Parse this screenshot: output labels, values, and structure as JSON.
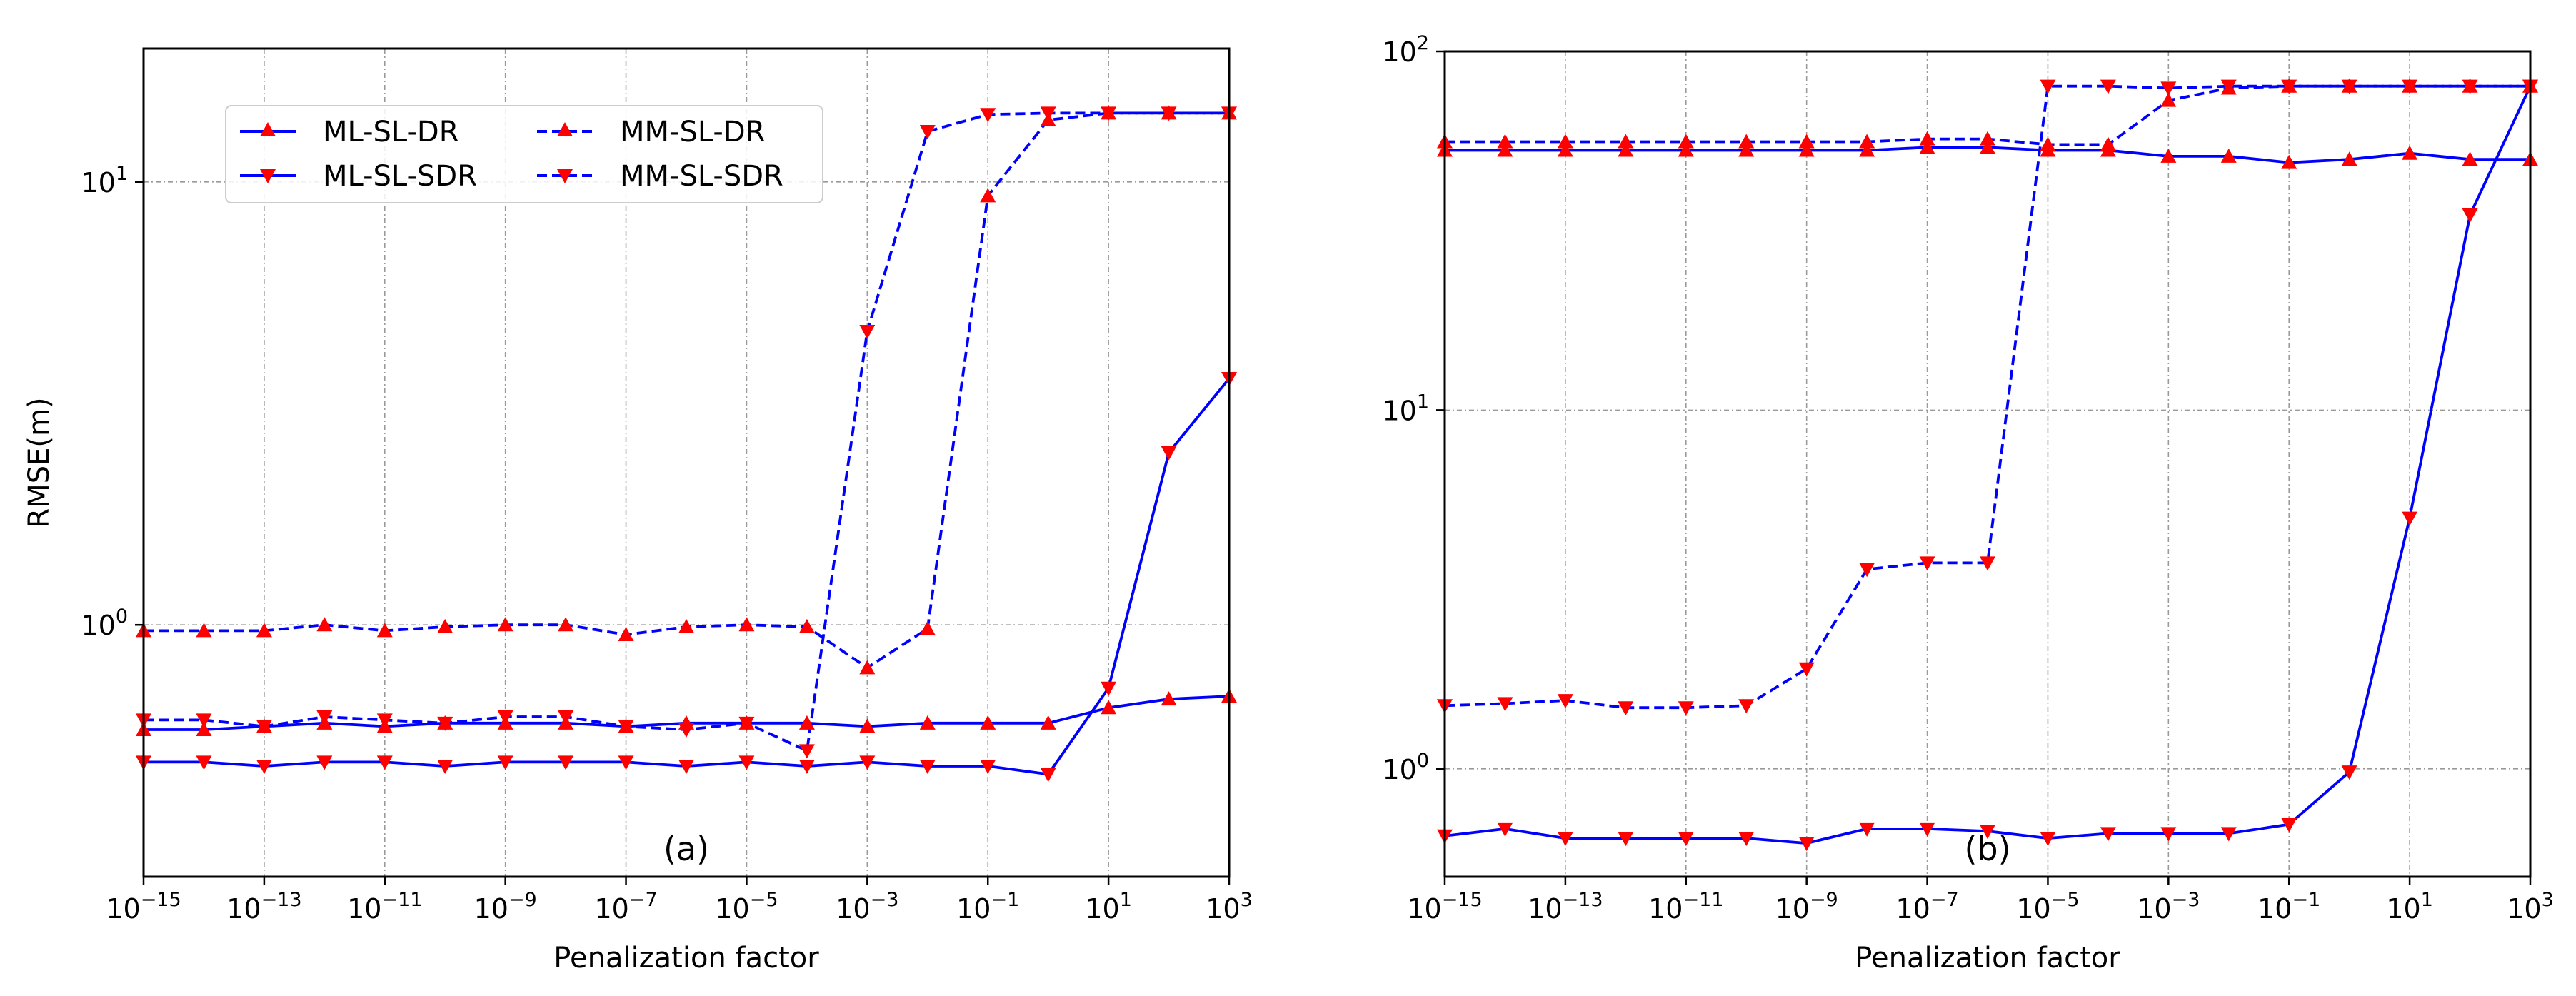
{
  "chart_data": [
    {
      "type": "line",
      "panel_label": "(a)",
      "xlabel": "Penalization factor",
      "ylabel": "RMSE(m)",
      "xscale": "log",
      "yscale": "log",
      "xlim": [
        1e-15,
        1000
      ],
      "ylim": [
        0.27,
        20
      ],
      "grid": true,
      "legend_position": "upper-left",
      "legend_columns": 2,
      "x_ticks": [
        {
          "base": "10",
          "exp": "−15"
        },
        {
          "base": "10",
          "exp": "−13"
        },
        {
          "base": "10",
          "exp": "−11"
        },
        {
          "base": "10",
          "exp": "−9"
        },
        {
          "base": "10",
          "exp": "−7"
        },
        {
          "base": "10",
          "exp": "−5"
        },
        {
          "base": "10",
          "exp": "−3"
        },
        {
          "base": "10",
          "exp": "−1"
        },
        {
          "base": "10",
          "exp": "1"
        },
        {
          "base": "10",
          "exp": "3"
        }
      ],
      "y_ticks": [
        {
          "base": "10",
          "exp": "0",
          "value": 1
        },
        {
          "base": "10",
          "exp": "1",
          "value": 10
        }
      ],
      "x": [
        1e-15,
        1e-14,
        1e-13,
        1e-12,
        1e-11,
        1e-10,
        1e-09,
        1e-08,
        1e-07,
        1e-06,
        1e-05,
        0.0001,
        0.001,
        0.01,
        0.1,
        1,
        10,
        100,
        1000
      ],
      "series": [
        {
          "name": "ML-SL-DR",
          "style": "solid",
          "marker": "triangle-up",
          "values": [
            0.58,
            0.58,
            0.59,
            0.6,
            0.59,
            0.6,
            0.6,
            0.6,
            0.59,
            0.6,
            0.6,
            0.6,
            0.59,
            0.6,
            0.6,
            0.6,
            0.65,
            0.68,
            0.69
          ]
        },
        {
          "name": "ML-SL-SDR",
          "style": "solid",
          "marker": "triangle-down",
          "values": [
            0.49,
            0.49,
            0.48,
            0.49,
            0.49,
            0.48,
            0.49,
            0.49,
            0.49,
            0.48,
            0.49,
            0.48,
            0.49,
            0.48,
            0.48,
            0.46,
            0.72,
            2.45,
            3.6
          ]
        },
        {
          "name": "MM-SL-DR",
          "style": "dashed",
          "marker": "triangle-up",
          "values": [
            0.97,
            0.97,
            0.97,
            1.0,
            0.97,
            0.99,
            1.0,
            1.0,
            0.95,
            0.99,
            1.0,
            0.99,
            0.8,
            0.98,
            9.3,
            13.8,
            14.3,
            14.3,
            14.3
          ]
        },
        {
          "name": "MM-SL-SDR",
          "style": "dashed",
          "marker": "triangle-down",
          "values": [
            0.61,
            0.61,
            0.59,
            0.62,
            0.61,
            0.6,
            0.62,
            0.62,
            0.59,
            0.58,
            0.6,
            0.52,
            4.6,
            13.0,
            14.2,
            14.3,
            14.3,
            14.3,
            14.3
          ]
        }
      ]
    },
    {
      "type": "line",
      "panel_label": "(b)",
      "xlabel": "Penalization factor",
      "ylabel": "",
      "xscale": "log",
      "yscale": "log",
      "xlim": [
        1e-15,
        1000
      ],
      "ylim": [
        0.5,
        100
      ],
      "grid": true,
      "x_ticks": [
        {
          "base": "10",
          "exp": "−15"
        },
        {
          "base": "10",
          "exp": "−13"
        },
        {
          "base": "10",
          "exp": "−11"
        },
        {
          "base": "10",
          "exp": "−9"
        },
        {
          "base": "10",
          "exp": "−7"
        },
        {
          "base": "10",
          "exp": "−5"
        },
        {
          "base": "10",
          "exp": "−3"
        },
        {
          "base": "10",
          "exp": "−1"
        },
        {
          "base": "10",
          "exp": "1"
        },
        {
          "base": "10",
          "exp": "3"
        }
      ],
      "y_ticks": [
        {
          "base": "10",
          "exp": "0",
          "value": 1
        },
        {
          "base": "10",
          "exp": "1",
          "value": 10
        },
        {
          "base": "10",
          "exp": "2",
          "value": 100
        }
      ],
      "x": [
        1e-15,
        1e-14,
        1e-13,
        1e-12,
        1e-11,
        1e-10,
        1e-09,
        1e-08,
        1e-07,
        1e-06,
        1e-05,
        0.0001,
        0.001,
        0.01,
        0.1,
        1,
        10,
        100,
        1000
      ],
      "series": [
        {
          "name": "ML-SL-DR",
          "style": "solid",
          "marker": "triangle-up",
          "values": [
            53,
            53,
            53,
            53,
            53,
            53,
            53,
            53,
            54,
            54,
            53,
            53,
            51,
            51,
            49,
            50,
            52,
            50,
            50
          ]
        },
        {
          "name": "ML-SL-SDR",
          "style": "solid",
          "marker": "triangle-down",
          "values": [
            0.65,
            0.68,
            0.64,
            0.64,
            0.64,
            0.64,
            0.62,
            0.68,
            0.68,
            0.67,
            0.64,
            0.66,
            0.66,
            0.66,
            0.7,
            0.98,
            5.0,
            35,
            80
          ]
        },
        {
          "name": "MM-SL-DR",
          "style": "dashed",
          "marker": "triangle-up",
          "values": [
            56,
            56,
            56,
            56,
            56,
            56,
            56,
            56,
            57,
            57,
            55,
            55,
            73,
            79,
            80,
            80,
            80,
            80,
            80
          ]
        },
        {
          "name": "MM-SL-SDR",
          "style": "dashed",
          "marker": "triangle-down",
          "values": [
            1.5,
            1.52,
            1.55,
            1.48,
            1.48,
            1.5,
            1.9,
            3.6,
            3.75,
            3.75,
            80,
            80,
            79,
            80,
            80,
            80,
            80,
            80,
            80
          ]
        }
      ]
    }
  ],
  "style": {
    "line_color": "#0000ff",
    "marker_color": "#ff0000",
    "grid_color": "#9a9a9a"
  }
}
